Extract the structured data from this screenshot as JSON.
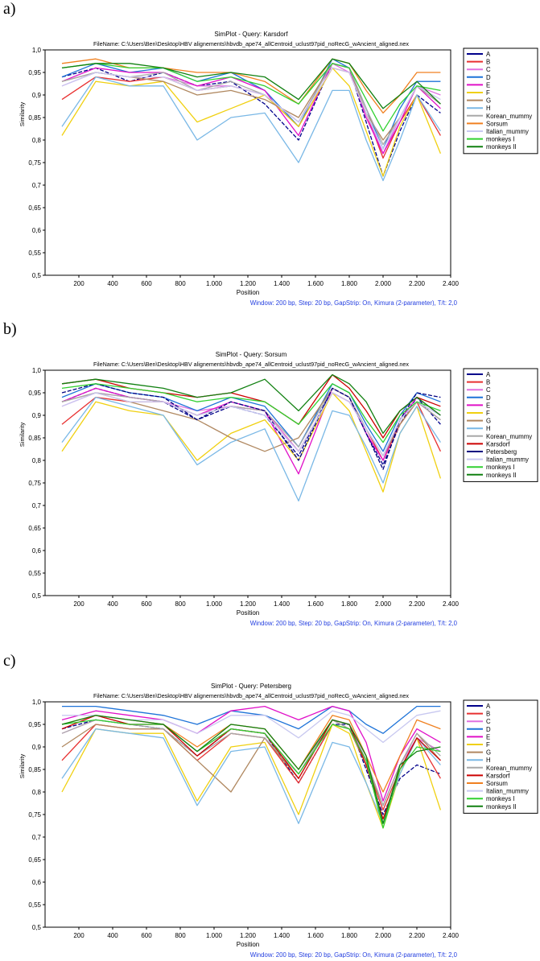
{
  "panel_labels": [
    "a)",
    "b)",
    "c)"
  ],
  "series_colors": {
    "A": "#00008b",
    "B": "#e83030",
    "C": "#e070e0",
    "D": "#1e73d8",
    "E": "#e010c8",
    "F": "#f0d010",
    "G": "#b08860",
    "H": "#7ab8e6",
    "Korean_mummy": "#a8a8a8",
    "Karsdorf": "#cc0000",
    "Petersberg": "#000080",
    "Sorsum": "#f08020",
    "Italian_mummy": "#c8c8f0",
    "monkeys I": "#30d030",
    "monkeys II": "#108010"
  },
  "chart_data": [
    {
      "type": "line",
      "title": "SimPlot - Query: Karsdorf",
      "subtitle": "FileName: C:\\Users\\Ben\\Desktop\\HBV alignements\\hbvdb_ape74_allCentroid_uclust97pid_noRecG_wAncient_aligned.nex",
      "xlabel": "Position",
      "ylabel": "Similarity",
      "footer": "Window: 200 bp, Step: 20 bp, GapStrip: On, Kimura (2-parameter), T/t: 2,0",
      "xlim": [
        0,
        2400
      ],
      "ylim": [
        0.5,
        1.0
      ],
      "x_ticks": [
        "200",
        "400",
        "600",
        "800",
        "1.000",
        "1.200",
        "1.400",
        "1.600",
        "1.800",
        "2.000",
        "2.200",
        "2.400"
      ],
      "y_ticks": [
        "0,5",
        "0,55",
        "0,6",
        "0,65",
        "0,7",
        "0,75",
        "0,8",
        "0,85",
        "0,9",
        "0,95",
        "1,0"
      ],
      "legend": [
        "A",
        "B",
        "C",
        "D",
        "E",
        "F",
        "G",
        "H",
        "Korean_mummy",
        "Sorsum",
        "Italian_mummy",
        "monkeys I",
        "monkeys II"
      ],
      "x": [
        100,
        300,
        500,
        700,
        900,
        1100,
        1300,
        1500,
        1700,
        1800,
        1900,
        2000,
        2100,
        2200,
        2340
      ],
      "series": [
        {
          "name": "A",
          "values": [
            0.94,
            0.96,
            0.93,
            0.95,
            0.92,
            0.93,
            0.88,
            0.8,
            0.97,
            0.96,
            0.84,
            0.72,
            0.82,
            0.9,
            0.86
          ]
        },
        {
          "name": "B",
          "values": [
            0.89,
            0.94,
            0.93,
            0.94,
            0.91,
            0.92,
            0.9,
            0.83,
            0.96,
            0.95,
            0.86,
            0.76,
            0.84,
            0.9,
            0.81
          ]
        },
        {
          "name": "C",
          "values": [
            0.92,
            0.95,
            0.94,
            0.94,
            0.92,
            0.92,
            0.9,
            0.84,
            0.97,
            0.95,
            0.86,
            0.77,
            0.85,
            0.92,
            0.9
          ]
        },
        {
          "name": "D",
          "values": [
            0.94,
            0.97,
            0.95,
            0.96,
            0.93,
            0.95,
            0.91,
            0.83,
            0.98,
            0.96,
            0.87,
            0.78,
            0.87,
            0.93,
            0.93
          ]
        },
        {
          "name": "E",
          "values": [
            0.93,
            0.96,
            0.95,
            0.95,
            0.92,
            0.94,
            0.91,
            0.81,
            0.97,
            0.96,
            0.85,
            0.77,
            0.84,
            0.92,
            0.87
          ]
        },
        {
          "name": "F",
          "values": [
            0.81,
            0.93,
            0.92,
            0.93,
            0.84,
            0.87,
            0.9,
            0.83,
            0.96,
            0.92,
            0.82,
            0.72,
            0.83,
            0.9,
            0.77
          ]
        },
        {
          "name": "G",
          "values": [
            0.93,
            0.95,
            0.94,
            0.93,
            0.9,
            0.91,
            0.89,
            0.85,
            0.97,
            0.96,
            0.86,
            0.8,
            0.85,
            0.92,
            0.88
          ]
        },
        {
          "name": "H",
          "values": [
            0.83,
            0.94,
            0.92,
            0.92,
            0.8,
            0.85,
            0.86,
            0.75,
            0.91,
            0.91,
            0.8,
            0.71,
            0.8,
            0.9,
            0.82
          ]
        },
        {
          "name": "Korean_mummy",
          "values": [
            0.93,
            0.95,
            0.94,
            0.95,
            0.91,
            0.93,
            0.9,
            0.84,
            0.97,
            0.96,
            0.87,
            0.79,
            0.85,
            0.92,
            0.88
          ]
        },
        {
          "name": "Sorsum",
          "values": [
            0.97,
            0.98,
            0.96,
            0.96,
            0.95,
            0.95,
            0.93,
            0.88,
            0.98,
            0.97,
            0.91,
            0.86,
            0.9,
            0.95,
            0.95
          ]
        },
        {
          "name": "Italian_mummy",
          "values": [
            0.92,
            0.95,
            0.94,
            0.94,
            0.91,
            0.92,
            0.9,
            0.84,
            0.96,
            0.95,
            0.86,
            0.78,
            0.85,
            0.92,
            0.89
          ]
        },
        {
          "name": "monkeys I",
          "values": [
            0.96,
            0.97,
            0.96,
            0.96,
            0.93,
            0.94,
            0.92,
            0.88,
            0.97,
            0.96,
            0.89,
            0.82,
            0.88,
            0.92,
            0.91
          ]
        },
        {
          "name": "monkeys II",
          "values": [
            0.96,
            0.97,
            0.97,
            0.96,
            0.94,
            0.95,
            0.94,
            0.89,
            0.98,
            0.97,
            0.92,
            0.87,
            0.9,
            0.93,
            0.88
          ]
        }
      ]
    },
    {
      "type": "line",
      "title": "SimPlot - Query: Sorsum",
      "subtitle": "FileName: C:\\Users\\Ben\\Desktop\\HBV alignements\\hbvdb_ape74_allCentroid_uclust97pid_noRecG_wAncient_aligned.nex",
      "xlabel": "Position",
      "ylabel": "Similarity",
      "footer": "Window: 200 bp, Step: 20 bp, GapStrip: On, Kimura (2-parameter), T/t: 2,0",
      "xlim": [
        0,
        2400
      ],
      "ylim": [
        0.5,
        1.0
      ],
      "x_ticks": [
        "200",
        "400",
        "600",
        "800",
        "1.000",
        "1.200",
        "1.400",
        "1.600",
        "1.800",
        "2.000",
        "2.200",
        "2.400"
      ],
      "y_ticks": [
        "0,5",
        "0,55",
        "0,6",
        "0,65",
        "0,7",
        "0,75",
        "0,8",
        "0,85",
        "0,9",
        "0,95",
        "1,0"
      ],
      "legend": [
        "A",
        "B",
        "C",
        "D",
        "E",
        "F",
        "G",
        "H",
        "Korean_mummy",
        "Karsdorf",
        "Petersberg",
        "Italian_mummy",
        "monkeys I",
        "monkeys II"
      ],
      "x": [
        100,
        300,
        500,
        700,
        900,
        1100,
        1300,
        1500,
        1700,
        1800,
        1900,
        2000,
        2100,
        2200,
        2340
      ],
      "series": [
        {
          "name": "A",
          "values": [
            0.93,
            0.96,
            0.94,
            0.93,
            0.89,
            0.92,
            0.9,
            0.81,
            0.96,
            0.94,
            0.86,
            0.79,
            0.88,
            0.94,
            0.88
          ]
        },
        {
          "name": "B",
          "values": [
            0.88,
            0.94,
            0.93,
            0.93,
            0.9,
            0.92,
            0.91,
            0.82,
            0.95,
            0.93,
            0.87,
            0.8,
            0.88,
            0.93,
            0.82
          ]
        },
        {
          "name": "C",
          "values": [
            0.92,
            0.95,
            0.94,
            0.93,
            0.91,
            0.92,
            0.91,
            0.82,
            0.95,
            0.93,
            0.87,
            0.81,
            0.89,
            0.93,
            0.89
          ]
        },
        {
          "name": "D",
          "values": [
            0.94,
            0.97,
            0.95,
            0.94,
            0.91,
            0.94,
            0.92,
            0.83,
            0.97,
            0.95,
            0.88,
            0.82,
            0.9,
            0.95,
            0.93
          ]
        },
        {
          "name": "E",
          "values": [
            0.93,
            0.96,
            0.94,
            0.93,
            0.9,
            0.93,
            0.91,
            0.77,
            0.96,
            0.94,
            0.86,
            0.8,
            0.89,
            0.94,
            0.9
          ]
        },
        {
          "name": "F",
          "values": [
            0.82,
            0.93,
            0.91,
            0.9,
            0.8,
            0.86,
            0.89,
            0.8,
            0.95,
            0.91,
            0.82,
            0.73,
            0.86,
            0.92,
            0.76
          ]
        },
        {
          "name": "G",
          "values": [
            0.93,
            0.95,
            0.93,
            0.91,
            0.89,
            0.85,
            0.82,
            0.85,
            0.96,
            0.94,
            0.87,
            0.81,
            0.88,
            0.93,
            0.89
          ]
        },
        {
          "name": "H",
          "values": [
            0.84,
            0.94,
            0.92,
            0.9,
            0.79,
            0.84,
            0.87,
            0.71,
            0.91,
            0.9,
            0.83,
            0.75,
            0.86,
            0.92,
            0.84
          ]
        },
        {
          "name": "Korean_mummy",
          "values": [
            0.93,
            0.95,
            0.94,
            0.93,
            0.9,
            0.92,
            0.91,
            0.83,
            0.96,
            0.94,
            0.87,
            0.81,
            0.89,
            0.93,
            0.89
          ]
        },
        {
          "name": "Karsdorf",
          "values": [
            0.97,
            0.98,
            0.96,
            0.95,
            0.94,
            0.95,
            0.93,
            0.88,
            0.99,
            0.96,
            0.91,
            0.85,
            0.91,
            0.94,
            0.92
          ]
        },
        {
          "name": "Petersberg",
          "values": [
            0.95,
            0.97,
            0.95,
            0.94,
            0.89,
            0.93,
            0.91,
            0.8,
            0.96,
            0.94,
            0.86,
            0.78,
            0.89,
            0.95,
            0.94
          ]
        },
        {
          "name": "Italian_mummy",
          "values": [
            0.92,
            0.95,
            0.93,
            0.93,
            0.9,
            0.92,
            0.9,
            0.82,
            0.95,
            0.93,
            0.87,
            0.81,
            0.89,
            0.93,
            0.9
          ]
        },
        {
          "name": "monkeys I",
          "values": [
            0.96,
            0.97,
            0.96,
            0.95,
            0.93,
            0.94,
            0.93,
            0.88,
            0.97,
            0.95,
            0.89,
            0.84,
            0.9,
            0.93,
            0.91
          ]
        },
        {
          "name": "monkeys II",
          "values": [
            0.97,
            0.98,
            0.97,
            0.96,
            0.94,
            0.95,
            0.98,
            0.91,
            0.99,
            0.97,
            0.93,
            0.86,
            0.91,
            0.94,
            0.9
          ]
        }
      ]
    },
    {
      "type": "line",
      "title": "SimPlot - Query: Petersberg",
      "subtitle": "FileName: C:\\Users\\Ben\\Desktop\\HBV alignements\\hbvdb_ape74_allCentroid_uclust97pid_noRecG_wAncient_aligned.nex",
      "xlabel": "Position",
      "ylabel": "Similarity",
      "footer": "Window: 200 bp, Step: 20 bp, GapStrip: On, Kimura (2-parameter), T/t: 2,0",
      "xlim": [
        0,
        2400
      ],
      "ylim": [
        0.5,
        1.0
      ],
      "x_ticks": [
        "200",
        "400",
        "600",
        "800",
        "1.000",
        "1.200",
        "1.400",
        "1.600",
        "1.800",
        "2.000",
        "2.200",
        "2.400"
      ],
      "y_ticks": [
        "0,5",
        "0,55",
        "0,6",
        "0,65",
        "0,7",
        "0,75",
        "0,8",
        "0,85",
        "0,9",
        "0,95",
        "1,0"
      ],
      "legend": [
        "A",
        "B",
        "C",
        "D",
        "E",
        "F",
        "G",
        "H",
        "Korean_mummy",
        "Karsdorf",
        "Sorsum",
        "Italian_mummy",
        "monkeys I",
        "monkeys II"
      ],
      "x": [
        100,
        300,
        500,
        700,
        900,
        1100,
        1300,
        1500,
        1700,
        1800,
        1900,
        2000,
        2100,
        2200,
        2340
      ],
      "series": [
        {
          "name": "A",
          "values": [
            0.94,
            0.96,
            0.95,
            0.94,
            0.88,
            0.94,
            0.93,
            0.82,
            0.95,
            0.95,
            0.85,
            0.75,
            0.83,
            0.86,
            0.84
          ]
        },
        {
          "name": "B",
          "values": [
            0.87,
            0.95,
            0.94,
            0.94,
            0.87,
            0.93,
            0.92,
            0.82,
            0.95,
            0.94,
            0.86,
            0.76,
            0.85,
            0.92,
            0.83
          ]
        },
        {
          "name": "C",
          "values": [
            0.93,
            0.96,
            0.95,
            0.95,
            0.89,
            0.94,
            0.93,
            0.84,
            0.96,
            0.95,
            0.87,
            0.77,
            0.86,
            0.92,
            0.89
          ]
        },
        {
          "name": "D",
          "values": [
            0.99,
            0.99,
            0.98,
            0.97,
            0.95,
            0.98,
            0.97,
            0.94,
            0.99,
            0.98,
            0.95,
            0.93,
            0.96,
            0.99,
            0.99
          ]
        },
        {
          "name": "E",
          "values": [
            0.96,
            0.98,
            0.97,
            0.96,
            0.93,
            0.98,
            0.99,
            0.96,
            0.99,
            0.98,
            0.91,
            0.78,
            0.88,
            0.94,
            0.91
          ]
        },
        {
          "name": "F",
          "values": [
            0.8,
            0.94,
            0.93,
            0.93,
            0.78,
            0.9,
            0.91,
            0.75,
            0.95,
            0.93,
            0.82,
            0.72,
            0.84,
            0.92,
            0.76
          ]
        },
        {
          "name": "G",
          "values": [
            0.9,
            0.95,
            0.94,
            0.94,
            0.87,
            0.8,
            0.92,
            0.83,
            0.96,
            0.94,
            0.86,
            0.77,
            0.86,
            0.93,
            0.87
          ]
        },
        {
          "name": "H",
          "values": [
            0.83,
            0.94,
            0.93,
            0.92,
            0.77,
            0.89,
            0.9,
            0.73,
            0.91,
            0.9,
            0.82,
            0.73,
            0.84,
            0.92,
            0.86
          ]
        },
        {
          "name": "Korean_mummy",
          "values": [
            0.93,
            0.96,
            0.95,
            0.94,
            0.88,
            0.93,
            0.92,
            0.84,
            0.96,
            0.94,
            0.87,
            0.77,
            0.86,
            0.93,
            0.88
          ]
        },
        {
          "name": "Karsdorf",
          "values": [
            0.94,
            0.97,
            0.95,
            0.95,
            0.88,
            0.94,
            0.93,
            0.83,
            0.96,
            0.95,
            0.86,
            0.74,
            0.85,
            0.92,
            0.87
          ]
        },
        {
          "name": "Sorsum",
          "values": [
            0.95,
            0.97,
            0.96,
            0.95,
            0.9,
            0.95,
            0.94,
            0.85,
            0.97,
            0.96,
            0.88,
            0.8,
            0.88,
            0.96,
            0.94
          ]
        },
        {
          "name": "Italian_mummy",
          "values": [
            0.97,
            0.97,
            0.96,
            0.96,
            0.93,
            0.97,
            0.97,
            0.92,
            0.98,
            0.97,
            0.94,
            0.91,
            0.94,
            0.97,
            0.98
          ]
        },
        {
          "name": "monkeys I",
          "values": [
            0.95,
            0.96,
            0.95,
            0.95,
            0.89,
            0.94,
            0.93,
            0.84,
            0.95,
            0.94,
            0.87,
            0.72,
            0.85,
            0.9,
            0.89
          ]
        },
        {
          "name": "monkeys II",
          "values": [
            0.95,
            0.97,
            0.96,
            0.95,
            0.89,
            0.95,
            0.94,
            0.85,
            0.96,
            0.95,
            0.88,
            0.73,
            0.86,
            0.89,
            0.9
          ]
        }
      ]
    }
  ]
}
